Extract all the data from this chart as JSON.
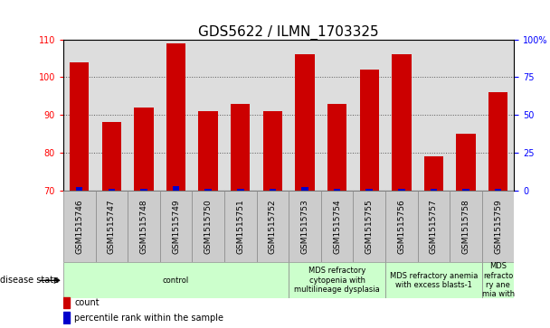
{
  "title": "GDS5622 / ILMN_1703325",
  "samples": [
    "GSM1515746",
    "GSM1515747",
    "GSM1515748",
    "GSM1515749",
    "GSM1515750",
    "GSM1515751",
    "GSM1515752",
    "GSM1515753",
    "GSM1515754",
    "GSM1515755",
    "GSM1515756",
    "GSM1515757",
    "GSM1515758",
    "GSM1515759"
  ],
  "counts": [
    104,
    88,
    92,
    109,
    91,
    93,
    91,
    106,
    93,
    102,
    106,
    79,
    85,
    96
  ],
  "percentile_ranks": [
    2,
    1,
    1,
    3,
    1,
    1,
    1,
    2,
    1,
    1,
    1,
    1,
    1,
    1
  ],
  "ylim_left": [
    70,
    110
  ],
  "ylim_right": [
    0,
    100
  ],
  "yticks_left": [
    70,
    80,
    90,
    100,
    110
  ],
  "yticks_right": [
    0,
    25,
    50,
    75,
    100
  ],
  "ytick_labels_right": [
    "0",
    "25",
    "50",
    "75",
    "100%"
  ],
  "bar_color": "#cc0000",
  "percentile_color": "#0000cc",
  "bar_width": 0.6,
  "disease_groups": [
    {
      "label": "control",
      "start": 0,
      "end": 7,
      "color": "#ccffcc"
    },
    {
      "label": "MDS refractory\ncytopenia with\nmultilineage dysplasia",
      "start": 7,
      "end": 10,
      "color": "#ccffcc"
    },
    {
      "label": "MDS refractory anemia\nwith excess blasts-1",
      "start": 10,
      "end": 13,
      "color": "#ccffcc"
    },
    {
      "label": "MDS\nrefracto\nry ane\nmia with",
      "start": 13,
      "end": 14,
      "color": "#ccffcc"
    }
  ],
  "xlabel_disease": "disease state",
  "legend_count_label": "count",
  "legend_percentile_label": "percentile rank within the sample",
  "background_color": "#ffffff",
  "plot_bg_color": "#dddddd",
  "sample_box_color": "#cccccc",
  "title_fontsize": 11,
  "tick_fontsize": 7,
  "sample_fontsize": 6.5,
  "disease_fontsize": 6,
  "grid_color": "#000000",
  "grid_linestyle": ":"
}
